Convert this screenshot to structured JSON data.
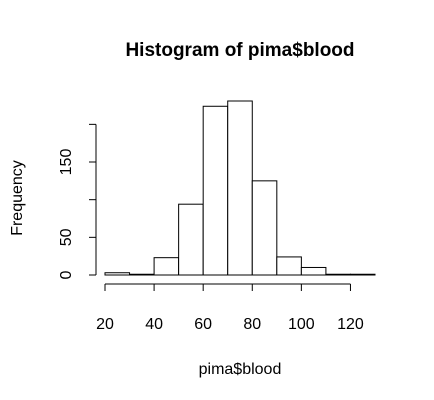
{
  "chart_data": {
    "type": "bar",
    "title": "Histogram of pima$blood",
    "xlabel": "pima$blood",
    "ylabel": "Frequency",
    "bin_edges": [
      20,
      30,
      40,
      50,
      60,
      70,
      80,
      90,
      100,
      110,
      120,
      130
    ],
    "values": [
      3,
      1,
      23,
      94,
      224,
      231,
      125,
      24,
      10,
      1,
      1
    ],
    "x_ticks": [
      20,
      40,
      60,
      80,
      100,
      120
    ],
    "y_ticks": [
      0,
      50,
      150
    ],
    "xlim": [
      20,
      130
    ],
    "ylim": [
      0,
      231
    ],
    "grid": false,
    "colors": {
      "bar_fill": "#ffffff",
      "bar_stroke": "#000000"
    }
  }
}
